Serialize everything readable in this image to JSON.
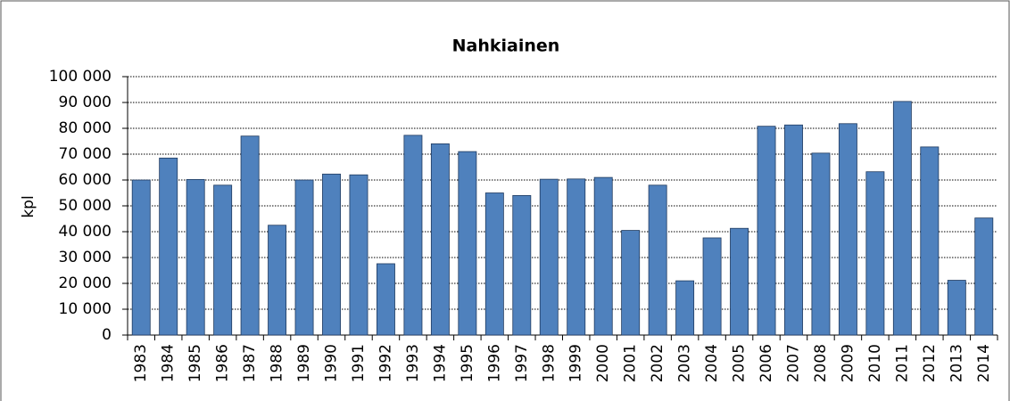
{
  "chart_data": {
    "type": "bar",
    "title": "Nahkiainen",
    "y_label": "kpl",
    "categories": [
      "1983",
      "1984",
      "1985",
      "1986",
      "1987",
      "1988",
      "1989",
      "1990",
      "1991",
      "1992",
      "1993",
      "1994",
      "1995",
      "1996",
      "1997",
      "1998",
      "1999",
      "2000",
      "2001",
      "2002",
      "2003",
      "2004",
      "2005",
      "2006",
      "2007",
      "2008",
      "2009",
      "2010",
      "2011",
      "2012",
      "2013",
      "2014"
    ],
    "values": [
      60000,
      68500,
      60200,
      58000,
      77000,
      42500,
      60000,
      62300,
      62000,
      27600,
      77300,
      74000,
      71000,
      55000,
      54000,
      60300,
      60400,
      61000,
      40500,
      58000,
      21000,
      37600,
      41300,
      80800,
      81300,
      70400,
      81800,
      63200,
      90400,
      72800,
      21200,
      45300
    ],
    "color": "#4f81bd",
    "ylim": [
      0,
      100000
    ],
    "yticks": [
      0,
      {
        "value": 10000,
        "label": "10 000"
      },
      {
        "value": 20000,
        "label": "20 000"
      },
      {
        "value": 30000,
        "label": "30 000"
      },
      {
        "value": 40000,
        "label": "40 000"
      },
      {
        "value": 50000,
        "label": "50 000"
      },
      {
        "value": 60000,
        "label": "60 000"
      },
      {
        "value": 70000,
        "label": "70 000"
      },
      {
        "value": 80000,
        "label": "80 000"
      },
      {
        "value": 90000,
        "label": "90 000"
      },
      {
        "value": 100000,
        "label": "100 000"
      }
    ],
    "grid": true
  }
}
